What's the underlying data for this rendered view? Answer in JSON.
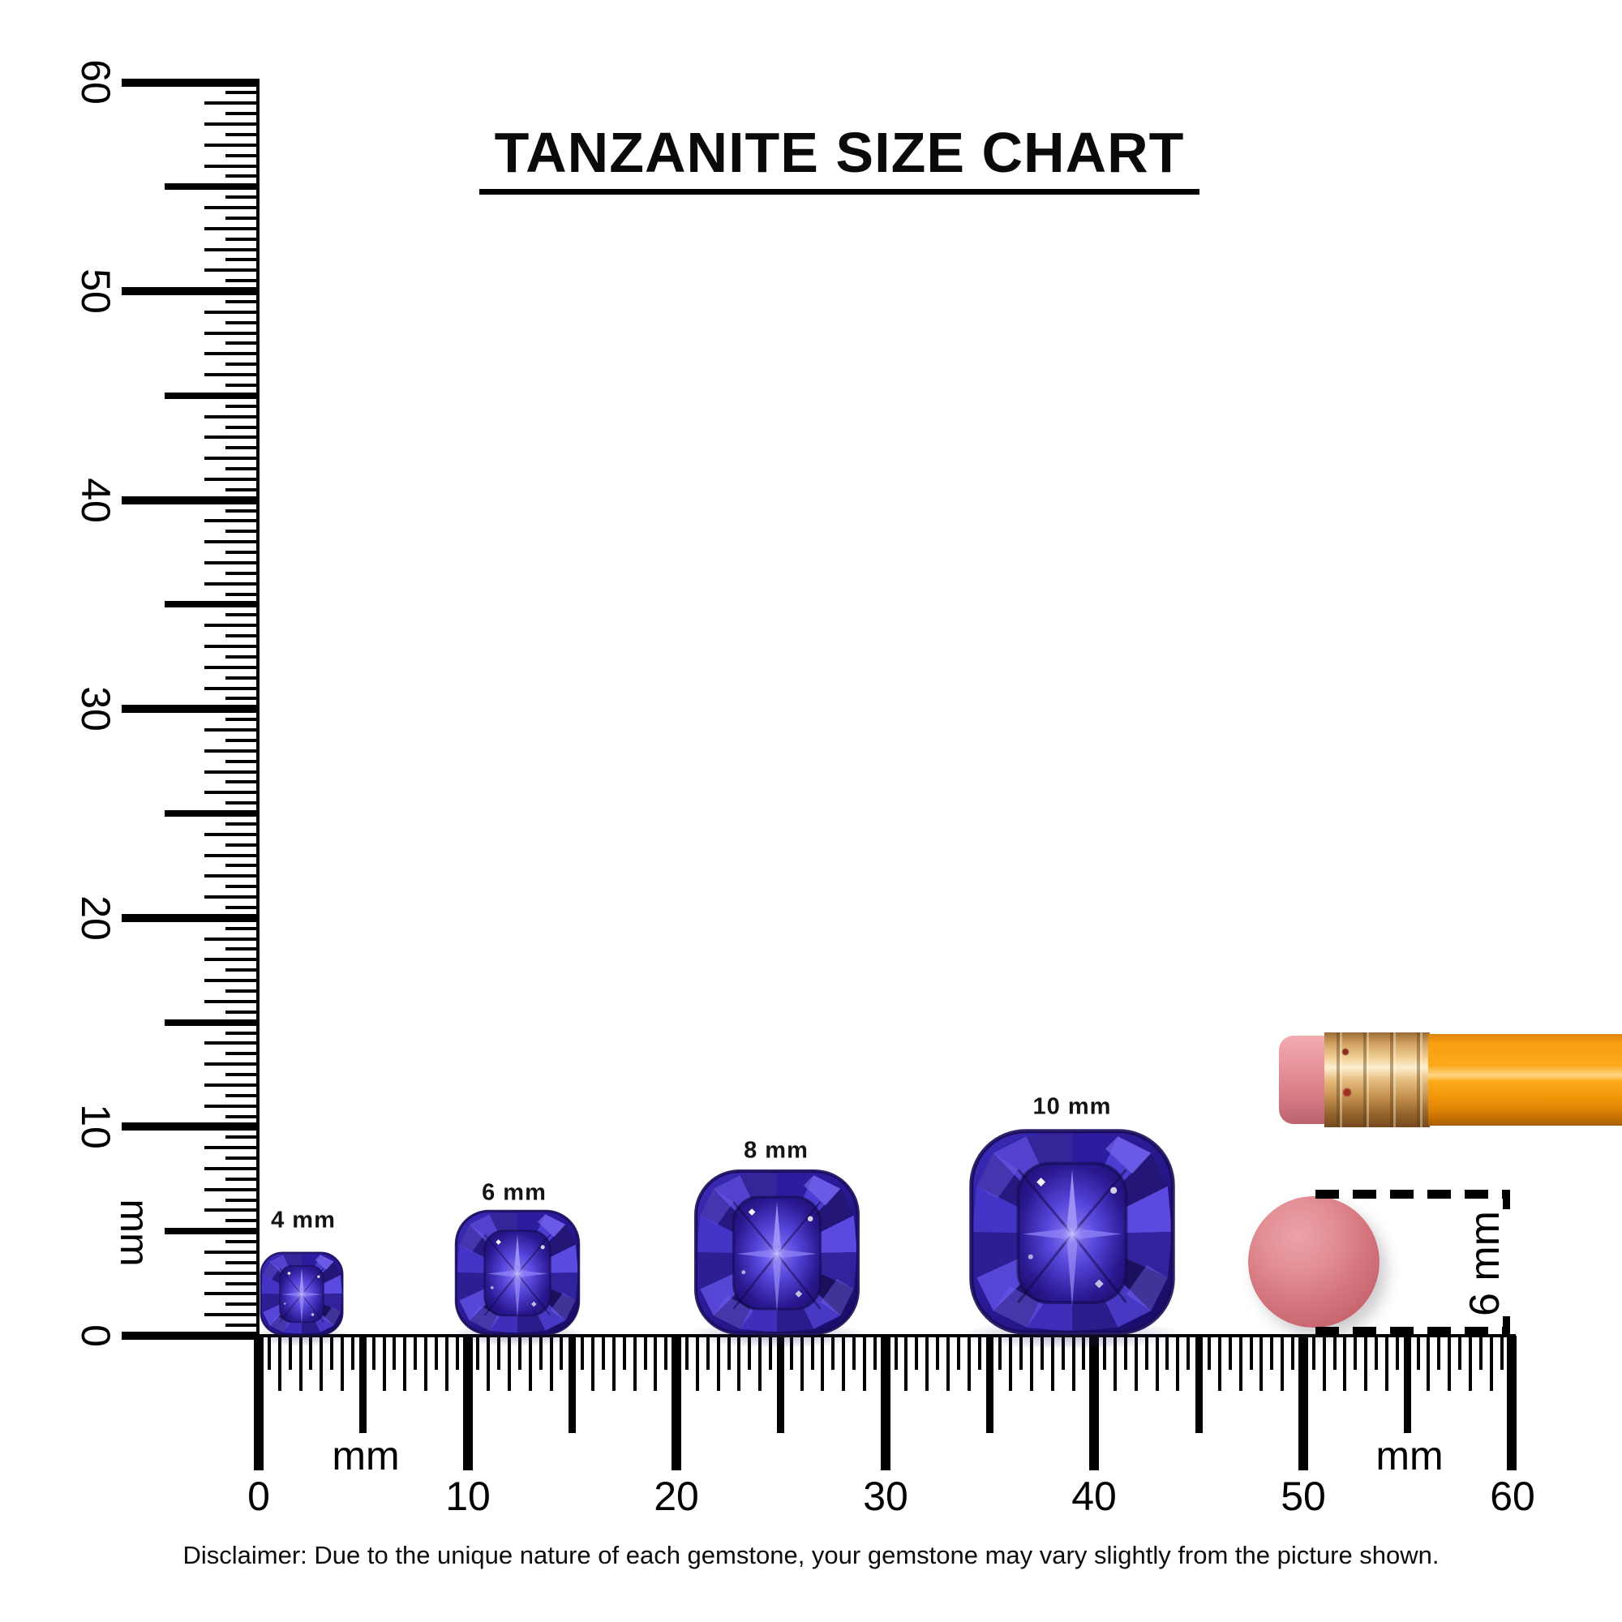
{
  "title": {
    "text": "TANZANITE SIZE CHART"
  },
  "gems": [
    {
      "label": "4 mm",
      "size_mm": 4
    },
    {
      "label": "6 mm",
      "size_mm": 6
    },
    {
      "label": "8 mm",
      "size_mm": 8
    },
    {
      "label": "10 mm",
      "size_mm": 10
    }
  ],
  "rulers": {
    "left": {
      "unit": "mm",
      "numbers": [
        "0",
        "10",
        "20",
        "30",
        "40",
        "50",
        "60"
      ],
      "range_mm": [
        0,
        60
      ],
      "tick_step_mm": 0.5
    },
    "bottom": {
      "unit_label_left": "mm",
      "unit_label_right": "mm",
      "numbers": [
        "0",
        "10",
        "20",
        "30",
        "40",
        "50",
        "60"
      ],
      "range_mm": [
        0,
        60
      ],
      "tick_step_mm": 0.5
    }
  },
  "reference": {
    "pencil": {
      "name": "pencil with eraser"
    },
    "eraser_top_view": {
      "diameter_label": "6 mm"
    }
  },
  "disclaimer": {
    "text": "Disclaimer: Due to the unique nature of each gemstone, your gemstone may vary slightly from the picture shown."
  },
  "colors": {
    "gem_primary": "#4638c0",
    "gem_light": "#7268e2",
    "gem_dark": "#241676",
    "pencil_body": "#f9a312",
    "pencil_ferrule": "#d3a364",
    "pencil_eraser_pink": "#e0878f",
    "eraser_top_view": "#d5757d",
    "ink": "#000000"
  }
}
